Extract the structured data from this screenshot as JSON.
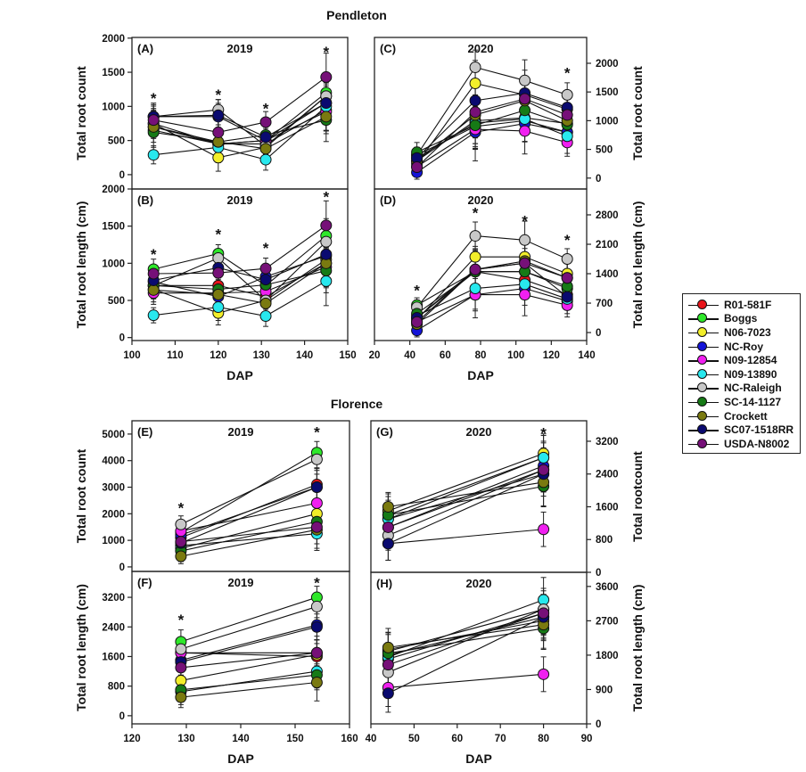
{
  "titles": {
    "site1": "Pendleton",
    "site2": "Florence"
  },
  "legend": {
    "position": "right",
    "entries": [
      {
        "name": "R01-581F",
        "color": "#e8141a"
      },
      {
        "name": "Boggs",
        "color": "#2ee82a"
      },
      {
        "name": "N06-7023",
        "color": "#f2ee2a"
      },
      {
        "name": "NC-Roy",
        "color": "#1414d8"
      },
      {
        "name": "N09-12854",
        "color": "#f020f0"
      },
      {
        "name": "N09-13890",
        "color": "#28e8ee"
      },
      {
        "name": "NC-Raleigh",
        "color": "#c8c8c8"
      },
      {
        "name": "SC-14-1127",
        "color": "#167a16"
      },
      {
        "name": "Crockett",
        "color": "#7a7a10"
      },
      {
        "name": "SC07-1518RR",
        "color": "#0a0a70"
      },
      {
        "name": "USDA-N8002",
        "color": "#761078"
      }
    ]
  },
  "chart_data": [
    {
      "panel": "(A)",
      "year": "2019",
      "type": "line",
      "ylabel": "Total root count",
      "xlabel": "",
      "xlim": [
        100,
        150
      ],
      "ylim": [
        -210,
        2010
      ],
      "yticks": [
        0,
        500,
        1000,
        1500,
        2000
      ],
      "xticks": [],
      "yaxis": "left",
      "x": [
        105,
        120,
        131,
        145
      ],
      "asterisks": [
        [
          105,
          1150
        ],
        [
          120,
          1200
        ],
        [
          131,
          1000
        ],
        [
          145,
          1830
        ]
      ],
      "err": [
        220,
        250,
        220,
        350
      ],
      "series": [
        [
          700,
          450,
          450,
          950
        ],
        [
          650,
          450,
          500,
          1200
        ],
        [
          750,
          250,
          400,
          1150
        ],
        [
          850,
          850,
          500,
          1050
        ],
        [
          750,
          450,
          500,
          920
        ],
        [
          290,
          400,
          220,
          1000
        ],
        [
          850,
          950,
          420,
          1150
        ],
        [
          620,
          480,
          580,
          800
        ],
        [
          700,
          480,
          380,
          850
        ],
        [
          850,
          870,
          550,
          1050
        ],
        [
          800,
          620,
          770,
          1430
        ]
      ]
    },
    {
      "panel": "(B)",
      "year": "2019",
      "type": "line",
      "ylabel": "Total root length (cm)",
      "xlabel": "DAP",
      "xlim": [
        100,
        150
      ],
      "ylim": [
        -40,
        2000
      ],
      "yticks": [
        0,
        500,
        1000,
        1500,
        2000
      ],
      "xticks": [
        100,
        110,
        120,
        130,
        140,
        150
      ],
      "yaxis": "left",
      "x": [
        105,
        120,
        131,
        145
      ],
      "asterisks": [
        [
          105,
          1150
        ],
        [
          120,
          1420
        ],
        [
          131,
          1230
        ],
        [
          145,
          1920
        ]
      ],
      "err": [
        170,
        200,
        200,
        330
      ],
      "series": [
        [
          700,
          700,
          550,
          1000
        ],
        [
          920,
          1130,
          700,
          1370
        ],
        [
          650,
          330,
          500,
          1050
        ],
        [
          750,
          550,
          820,
          1100
        ],
        [
          600,
          600,
          620,
          950
        ],
        [
          300,
          410,
          290,
          760
        ],
        [
          700,
          1070,
          500,
          1290
        ],
        [
          700,
          650,
          710,
          900
        ],
        [
          640,
          580,
          460,
          1000
        ],
        [
          770,
          940,
          780,
          1120
        ],
        [
          860,
          870,
          930,
          1510
        ]
      ]
    },
    {
      "panel": "(C)",
      "year": "2020",
      "type": "line",
      "ylabel": "Total root count",
      "xlabel": "",
      "xlim": [
        20,
        140
      ],
      "ylim": [
        -190,
        2450
      ],
      "yticks": [
        0,
        500,
        1000,
        1500,
        2000
      ],
      "xticks": [],
      "yaxis": "right",
      "x": [
        44,
        77,
        105,
        129
      ],
      "asterisks": [
        [
          129,
          1870
        ]
      ],
      "err": [
        170,
        500,
        400,
        300
      ],
      "series": [
        [
          300,
          1000,
          1050,
          950
        ],
        [
          400,
          900,
          1000,
          800
        ],
        [
          250,
          1650,
          1450,
          1200
        ],
        [
          100,
          800,
          950,
          800
        ],
        [
          200,
          850,
          820,
          620
        ],
        [
          350,
          960,
          1030,
          730
        ],
        [
          400,
          1930,
          1700,
          1450
        ],
        [
          450,
          920,
          1180,
          930
        ],
        [
          300,
          1100,
          1350,
          1000
        ],
        [
          350,
          1350,
          1480,
          1230
        ],
        [
          190,
          1150,
          1380,
          1100
        ]
      ]
    },
    {
      "panel": "(D)",
      "year": "2020",
      "type": "line",
      "ylabel": "Total root length (cm)",
      "xlabel": "DAP",
      "xlim": [
        20,
        140
      ],
      "ylim": [
        -190,
        3415
      ],
      "yticks": [
        0,
        700,
        1400,
        2100,
        2800
      ],
      "xticks": [
        20,
        40,
        60,
        80,
        100,
        120,
        140
      ],
      "yaxis": "right",
      "x": [
        44,
        77,
        105,
        129
      ],
      "asterisks": [
        [
          44,
          1050
        ],
        [
          77,
          2900
        ],
        [
          105,
          2700
        ],
        [
          129,
          2250
        ]
      ],
      "err": [
        220,
        550,
        500,
        350
      ],
      "series": [
        [
          350,
          1450,
          1250,
          900
        ],
        [
          650,
          1450,
          1450,
          1050
        ],
        [
          300,
          1800,
          1800,
          1400
        ],
        [
          50,
          900,
          1050,
          750
        ],
        [
          250,
          900,
          900,
          650
        ],
        [
          400,
          1050,
          1150,
          800
        ],
        [
          600,
          2300,
          2200,
          1750
        ],
        [
          450,
          1450,
          1450,
          1100
        ],
        [
          200,
          1500,
          1700,
          1300
        ],
        [
          350,
          1500,
          1650,
          850
        ],
        [
          250,
          1500,
          1650,
          1300
        ]
      ]
    },
    {
      "panel": "(E)",
      "year": "2019",
      "type": "line",
      "ylabel": "Total root count",
      "xlabel": "",
      "xlim": [
        120,
        160
      ],
      "ylim": [
        -170,
        5500
      ],
      "yticks": [
        0,
        1000,
        2000,
        3000,
        4000,
        5000
      ],
      "xticks": [],
      "yaxis": "left",
      "x": [
        129,
        154
      ],
      "asterisks": [
        [
          129,
          2300
        ],
        [
          154,
          5150
        ]
      ],
      "err": [
        400,
        700
      ],
      "series": [
        [
          1100,
          3100
        ],
        [
          1300,
          4300
        ],
        [
          700,
          2000
        ],
        [
          1200,
          3000
        ],
        [
          1350,
          2400
        ],
        [
          800,
          1250
        ],
        [
          1600,
          4050
        ],
        [
          600,
          1700
        ],
        [
          400,
          1400
        ],
        [
          900,
          3000
        ],
        [
          950,
          1500
        ]
      ]
    },
    {
      "panel": "(F)",
      "year": "2019",
      "type": "line",
      "ylabel": "Total root length (cm)",
      "xlabel": "DAP",
      "xlim": [
        120,
        160
      ],
      "ylim": [
        -220,
        3900
      ],
      "yticks": [
        0,
        800,
        1600,
        2400,
        3200
      ],
      "xticks": [
        120,
        130,
        140,
        150,
        160
      ],
      "yaxis": "left",
      "x": [
        129,
        154
      ],
      "asterisks": [
        [
          129,
          2650
        ],
        [
          154,
          3650
        ]
      ],
      "err": [
        400,
        500
      ],
      "series": [
        [
          1700,
          1600
        ],
        [
          2000,
          3200
        ],
        [
          950,
          1650
        ],
        [
          1500,
          2450
        ],
        [
          1700,
          1700
        ],
        [
          650,
          1200
        ],
        [
          1800,
          2950
        ],
        [
          700,
          1100
        ],
        [
          500,
          900
        ],
        [
          1450,
          2400
        ],
        [
          1300,
          1700
        ]
      ]
    },
    {
      "panel": "(G)",
      "year": "2020",
      "type": "line",
      "ylabel": "Total rootcount",
      "xlabel": "",
      "xlim": [
        40,
        90
      ],
      "ylim": [
        0,
        3700
      ],
      "yticks": [
        0,
        800,
        1600,
        2400,
        3200
      ],
      "xticks": [],
      "yaxis": "right",
      "x": [
        44,
        80
      ],
      "asterisks": [
        [
          80,
          3450
        ]
      ],
      "err": [
        450,
        600
      ],
      "series": [
        [
          1300,
          2400
        ],
        [
          1400,
          2800
        ],
        [
          1500,
          2900
        ],
        [
          1100,
          2600
        ],
        [
          700,
          1050
        ],
        [
          1300,
          2800
        ],
        [
          900,
          2500
        ],
        [
          1400,
          2100
        ],
        [
          1600,
          2200
        ],
        [
          700,
          2400
        ],
        [
          1100,
          2500
        ]
      ]
    },
    {
      "panel": "(H)",
      "year": "2020",
      "type": "line",
      "ylabel": "Total root length (cm)",
      "xlabel": "DAP",
      "xlim": [
        40,
        90
      ],
      "ylim": [
        0,
        3970
      ],
      "yticks": [
        0,
        900,
        1800,
        2700,
        3600
      ],
      "xticks": [
        40,
        50,
        60,
        70,
        80,
        90
      ],
      "yaxis": "right",
      "x": [
        44,
        80
      ],
      "asterisks": [],
      "err": [
        550,
        650
      ],
      "series": [
        [
          1800,
          2800
        ],
        [
          1900,
          3000
        ],
        [
          1950,
          2700
        ],
        [
          1700,
          2900
        ],
        [
          950,
          1300
        ],
        [
          1750,
          3250
        ],
        [
          1350,
          3000
        ],
        [
          1850,
          2500
        ],
        [
          2000,
          2600
        ],
        [
          800,
          2800
        ],
        [
          1550,
          2900
        ]
      ]
    }
  ]
}
